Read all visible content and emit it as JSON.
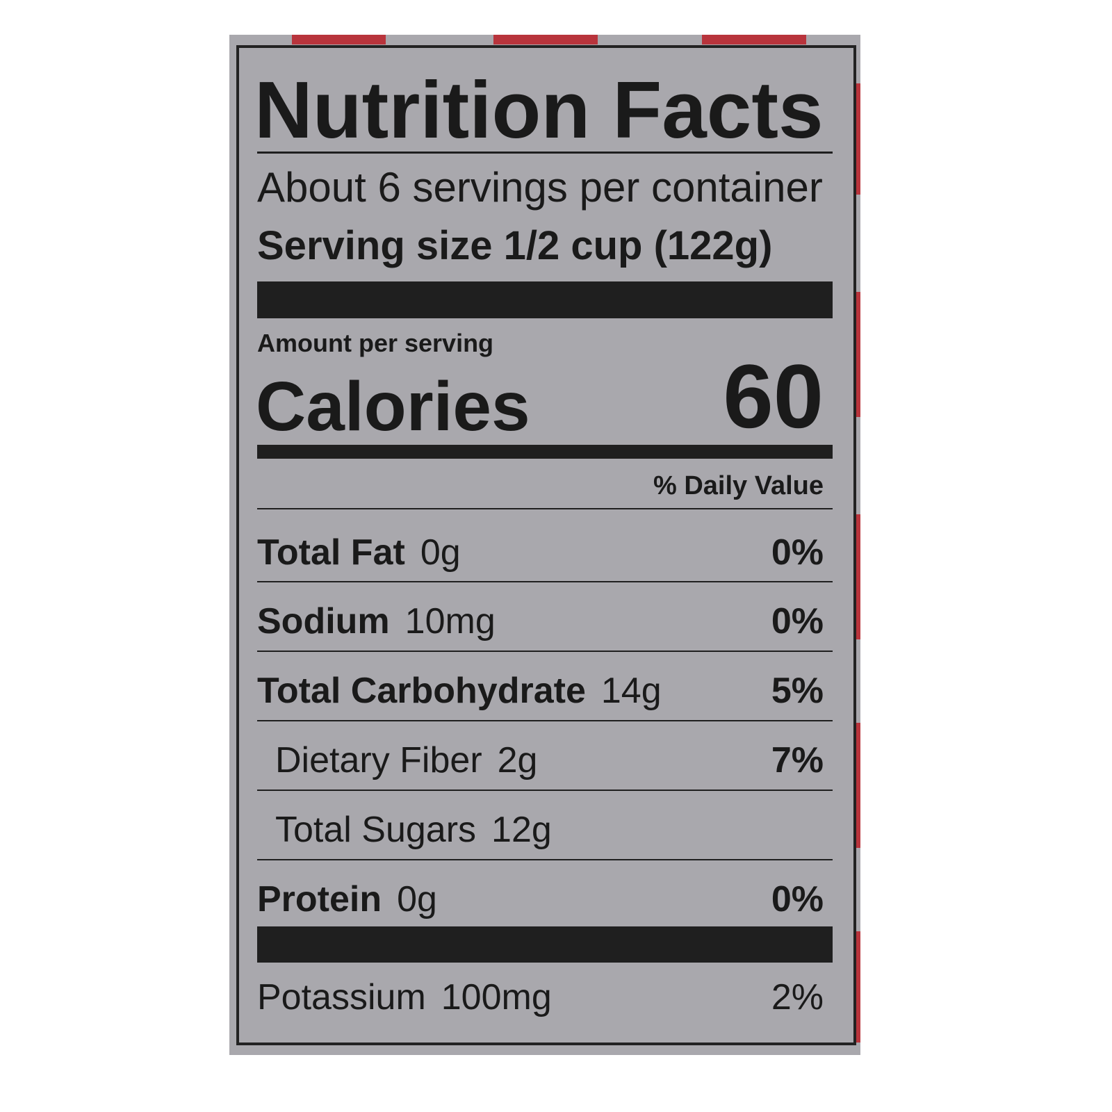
{
  "label": {
    "title": "Nutrition Facts",
    "servings": "About 6 servings per container",
    "serving_size": "Serving size 1/2 cup (122g)",
    "amount_per_serving": "Amount per serving",
    "calories": {
      "label": "Calories",
      "value": 60
    },
    "daily_value_header": "% Daily Value",
    "rows": [
      {
        "name": "Total Fat",
        "amount": "0g",
        "dv": "0%"
      },
      {
        "name": "Sodium",
        "amount": "10mg",
        "dv": "0%"
      },
      {
        "name": "Total Carbohydrate",
        "amount": "14g",
        "dv": "5%"
      },
      {
        "name": "Dietary Fiber",
        "amount": "2g",
        "dv": "7%"
      },
      {
        "name": "Total Sugars",
        "amount": "12g"
      },
      {
        "name": "Protein",
        "amount": "0g",
        "dv": "0%"
      },
      {
        "name": "Potassium",
        "amount": "100mg",
        "dv": "2%"
      }
    ]
  }
}
